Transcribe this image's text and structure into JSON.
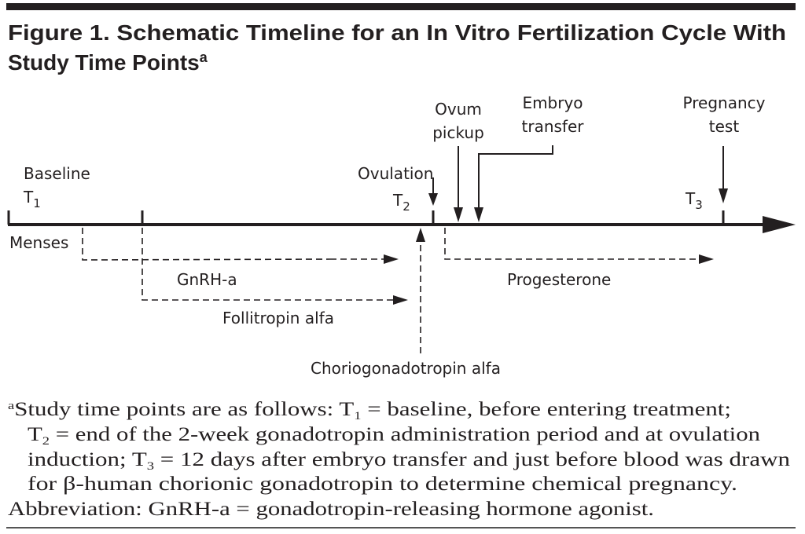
{
  "title": {
    "line1": "Figure 1. Schematic Timeline for an In Vitro Fertilization Cycle With",
    "line2": "Study Time Points",
    "superscript": "a"
  },
  "timeline": {
    "baseline": "Baseline",
    "t1": {
      "base": "T",
      "sub": "1"
    },
    "t2": {
      "base": "T",
      "sub": "2"
    },
    "t3": {
      "base": "T",
      "sub": "3"
    },
    "menses": "Menses",
    "ovulation": "Ovulation",
    "ovum_pickup": [
      "Ovum",
      "pickup"
    ],
    "embryo_transfer": [
      "Embryo",
      "transfer"
    ],
    "pregnancy_test": [
      "Pregnancy",
      "test"
    ],
    "gnrh": "GnRH-a",
    "follitropin": "Follitropin alfa",
    "choriogonadotropin": "Choriogonadotropin alfa",
    "progesterone": "Progesterone"
  },
  "footnote": {
    "l1a": "a",
    "l1b": "Study time points are as follows: T",
    "l1s": "1",
    "l1c": " = baseline, before entering treatment;",
    "l2a": "T",
    "l2s": "2",
    "l2b": " = end of the 2-week gonadotropin administration period and at ovulation",
    "l3a": "induction; T",
    "l3s": "3",
    "l3b": " = 12 days after embryo transfer and just before blood was drawn",
    "l4": "for β-human chorionic gonadotropin to determine chemical pregnancy.",
    "l5": "Abbreviation: GnRH-a = gonadotropin-releasing hormone agonist."
  }
}
